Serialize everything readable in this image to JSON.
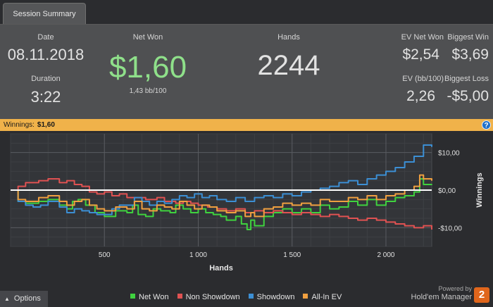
{
  "tab": {
    "label": "Session Summary"
  },
  "summary": {
    "date_label": "Date",
    "date_value": "08.11.2018",
    "duration_label": "Duration",
    "duration_value": "3:22",
    "net_won_label": "Net Won",
    "net_won_value": "$1,60",
    "net_won_sub": "1,43 bb/100",
    "hands_label": "Hands",
    "hands_value": "2244",
    "ev_net_won_label": "EV Net Won",
    "ev_net_won_value": "$2,54",
    "biggest_win_label": "Biggest Win",
    "biggest_win_value": "$3,69",
    "ev_bb_label": "EV (bb/100)",
    "ev_bb_value": "2,26",
    "biggest_loss_label": "Biggest Loss",
    "biggest_loss_value": "-$5,00",
    "net_won_color": "#8fe08a"
  },
  "winnings_bar": {
    "label": "Winnings:",
    "value": "$1,60",
    "help_glyph": "?",
    "color": "#f0b24a"
  },
  "chart_data": {
    "type": "line",
    "xlabel": "Hands",
    "ylabel": "Winnings",
    "xlim": [
      0,
      2244
    ],
    "ylim": [
      -15,
      15
    ],
    "x_ticks": [
      {
        "v": 500,
        "label": "500"
      },
      {
        "v": 1000,
        "label": "1 000"
      },
      {
        "v": 1500,
        "label": "1 500"
      },
      {
        "v": 2000,
        "label": "2 000"
      }
    ],
    "y_ticks": [
      {
        "v": 10,
        "label": "$10,00"
      },
      {
        "v": 0,
        "label": "$0,00"
      },
      {
        "v": -10,
        "label": "-$10,00"
      }
    ],
    "grid": true,
    "zero_line_color": "#ffffff",
    "series": [
      {
        "name": "Net Won",
        "color": "#3fd23f",
        "points": [
          [
            0,
            0
          ],
          [
            40,
            -3
          ],
          [
            80,
            -3.5
          ],
          [
            150,
            -3
          ],
          [
            200,
            -2.5
          ],
          [
            260,
            -4
          ],
          [
            300,
            -5
          ],
          [
            330,
            -3
          ],
          [
            360,
            -2.5
          ],
          [
            400,
            -4
          ],
          [
            450,
            -6
          ],
          [
            500,
            -7
          ],
          [
            560,
            -5.5
          ],
          [
            620,
            -6
          ],
          [
            650,
            -4
          ],
          [
            680,
            -6.5
          ],
          [
            720,
            -7
          ],
          [
            760,
            -5
          ],
          [
            800,
            -5.5
          ],
          [
            850,
            -6
          ],
          [
            880,
            -4
          ],
          [
            920,
            -5
          ],
          [
            960,
            -6
          ],
          [
            1000,
            -5
          ],
          [
            1040,
            -6
          ],
          [
            1080,
            -6.5
          ],
          [
            1120,
            -7
          ],
          [
            1150,
            -8
          ],
          [
            1200,
            -7
          ],
          [
            1230,
            -9
          ],
          [
            1260,
            -10.5
          ],
          [
            1280,
            -8
          ],
          [
            1300,
            -9.5
          ],
          [
            1350,
            -7
          ],
          [
            1400,
            -6
          ],
          [
            1450,
            -5
          ],
          [
            1500,
            -6
          ],
          [
            1550,
            -5
          ],
          [
            1600,
            -6
          ],
          [
            1650,
            -4
          ],
          [
            1700,
            -5
          ],
          [
            1750,
            -4.5
          ],
          [
            1800,
            -3
          ],
          [
            1850,
            -4
          ],
          [
            1900,
            -2.5
          ],
          [
            1950,
            -4
          ],
          [
            2000,
            -3
          ],
          [
            2050,
            -2
          ],
          [
            2100,
            -1.5
          ],
          [
            2150,
            -0.5
          ],
          [
            2180,
            3
          ],
          [
            2200,
            1.5
          ],
          [
            2244,
            1.6
          ]
        ]
      },
      {
        "name": "Non Showdown",
        "color": "#e05252",
        "points": [
          [
            0,
            0
          ],
          [
            40,
            1
          ],
          [
            80,
            2
          ],
          [
            150,
            2.5
          ],
          [
            200,
            3
          ],
          [
            260,
            2
          ],
          [
            300,
            2.5
          ],
          [
            340,
            1.5
          ],
          [
            380,
            1
          ],
          [
            420,
            -0.5
          ],
          [
            460,
            -1
          ],
          [
            500,
            -0.5
          ],
          [
            540,
            -1.5
          ],
          [
            580,
            -1
          ],
          [
            620,
            -2
          ],
          [
            680,
            -2
          ],
          [
            720,
            -2.5
          ],
          [
            780,
            -2
          ],
          [
            820,
            -3
          ],
          [
            880,
            -3.5
          ],
          [
            920,
            -3
          ],
          [
            960,
            -3.5
          ],
          [
            1000,
            -4
          ],
          [
            1050,
            -4.5
          ],
          [
            1100,
            -5
          ],
          [
            1150,
            -5.5
          ],
          [
            1200,
            -5
          ],
          [
            1250,
            -6
          ],
          [
            1300,
            -5.5
          ],
          [
            1350,
            -6
          ],
          [
            1400,
            -5.5
          ],
          [
            1450,
            -6
          ],
          [
            1500,
            -6.5
          ],
          [
            1550,
            -6
          ],
          [
            1600,
            -6.5
          ],
          [
            1650,
            -7
          ],
          [
            1700,
            -6.5
          ],
          [
            1750,
            -7
          ],
          [
            1800,
            -7.5
          ],
          [
            1850,
            -8
          ],
          [
            1900,
            -7.5
          ],
          [
            1950,
            -8
          ],
          [
            2000,
            -8.5
          ],
          [
            2050,
            -9
          ],
          [
            2100,
            -9.5
          ],
          [
            2150,
            -10
          ],
          [
            2200,
            -9.5
          ],
          [
            2244,
            -10.5
          ]
        ]
      },
      {
        "name": "Showdown",
        "color": "#3c8fd4",
        "points": [
          [
            0,
            0
          ],
          [
            40,
            -3
          ],
          [
            80,
            -4
          ],
          [
            120,
            -4.5
          ],
          [
            160,
            -4
          ],
          [
            200,
            -3
          ],
          [
            260,
            -4.5
          ],
          [
            300,
            -6
          ],
          [
            340,
            -5
          ],
          [
            380,
            -5.5
          ],
          [
            420,
            -6
          ],
          [
            460,
            -6.5
          ],
          [
            500,
            -6.5
          ],
          [
            540,
            -5
          ],
          [
            580,
            -4
          ],
          [
            620,
            -4
          ],
          [
            660,
            -2
          ],
          [
            700,
            -3
          ],
          [
            740,
            -4
          ],
          [
            780,
            -3
          ],
          [
            820,
            -3.5
          ],
          [
            860,
            -2.5
          ],
          [
            900,
            -1.5
          ],
          [
            940,
            -2
          ],
          [
            980,
            -1
          ],
          [
            1020,
            -2
          ],
          [
            1060,
            -1.5
          ],
          [
            1100,
            -2.5
          ],
          [
            1150,
            -3
          ],
          [
            1200,
            -2
          ],
          [
            1250,
            -3
          ],
          [
            1300,
            -2
          ],
          [
            1350,
            -1.5
          ],
          [
            1400,
            -2
          ],
          [
            1450,
            -1
          ],
          [
            1500,
            -1.5
          ],
          [
            1550,
            -0.5
          ],
          [
            1600,
            0
          ],
          [
            1650,
            0.5
          ],
          [
            1700,
            1
          ],
          [
            1750,
            2
          ],
          [
            1800,
            2.5
          ],
          [
            1850,
            1.5
          ],
          [
            1900,
            3
          ],
          [
            1950,
            4
          ],
          [
            2000,
            5
          ],
          [
            2050,
            6
          ],
          [
            2100,
            7.5
          ],
          [
            2150,
            9
          ],
          [
            2200,
            12
          ],
          [
            2244,
            11.5
          ]
        ]
      },
      {
        "name": "All-In EV",
        "color": "#f0a040",
        "points": [
          [
            0,
            0
          ],
          [
            40,
            -2.5
          ],
          [
            80,
            -3
          ],
          [
            150,
            -2
          ],
          [
            200,
            -1.5
          ],
          [
            260,
            -3
          ],
          [
            300,
            -4
          ],
          [
            340,
            -3
          ],
          [
            380,
            -2.5
          ],
          [
            420,
            -4
          ],
          [
            460,
            -5
          ],
          [
            500,
            -5.5
          ],
          [
            560,
            -4.5
          ],
          [
            620,
            -5
          ],
          [
            660,
            -3
          ],
          [
            700,
            -5
          ],
          [
            740,
            -5.5
          ],
          [
            780,
            -4
          ],
          [
            820,
            -4.5
          ],
          [
            860,
            -5
          ],
          [
            900,
            -3
          ],
          [
            940,
            -4
          ],
          [
            980,
            -5
          ],
          [
            1020,
            -4
          ],
          [
            1060,
            -4.5
          ],
          [
            1100,
            -5.5
          ],
          [
            1150,
            -6
          ],
          [
            1200,
            -5.5
          ],
          [
            1250,
            -7
          ],
          [
            1280,
            -6
          ],
          [
            1300,
            -7
          ],
          [
            1350,
            -5
          ],
          [
            1400,
            -4.5
          ],
          [
            1450,
            -3.5
          ],
          [
            1500,
            -4
          ],
          [
            1550,
            -3.5
          ],
          [
            1600,
            -4
          ],
          [
            1650,
            -2.5
          ],
          [
            1700,
            -3
          ],
          [
            1750,
            -3
          ],
          [
            1800,
            -2
          ],
          [
            1850,
            -2.5
          ],
          [
            1900,
            -1.5
          ],
          [
            1950,
            -2.5
          ],
          [
            2000,
            -1.5
          ],
          [
            2050,
            -1
          ],
          [
            2100,
            0
          ],
          [
            2150,
            1
          ],
          [
            2180,
            4
          ],
          [
            2200,
            3
          ],
          [
            2244,
            2.5
          ]
        ]
      }
    ]
  },
  "options": {
    "label": "Options",
    "arrow": "▲"
  },
  "brand": {
    "powered_by": "Powered by",
    "name": "Hold'em Manager",
    "logo_text": "2",
    "logo_color": "#e0661c"
  }
}
